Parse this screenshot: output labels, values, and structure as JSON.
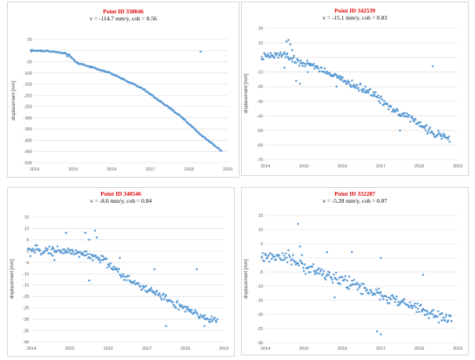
{
  "chart_data": [
    {
      "type": "scatter",
      "title": "Point ID 338046",
      "subtitle": "v = -114.7 mm/y, coh = 0.56",
      "ylabel": "displacement [mm]",
      "xlim": [
        2014,
        2019
      ],
      "ylim": [
        -500,
        50
      ],
      "yticks": [
        50,
        0,
        -50,
        -100,
        -150,
        -200,
        -250,
        -300,
        -350,
        -400,
        -450,
        -500
      ],
      "xticks": [
        2014,
        2015,
        2016,
        2017,
        2018,
        2019
      ],
      "marker_color": "#5b9bd5",
      "title_color": "#e00000",
      "trend": [
        [
          2013.9,
          0
        ],
        [
          2014.4,
          -3
        ],
        [
          2014.85,
          -15
        ],
        [
          2015.1,
          -55
        ],
        [
          2015.5,
          -75
        ],
        [
          2015.95,
          -100
        ],
        [
          2016.3,
          -128
        ],
        [
          2016.8,
          -170
        ],
        [
          2017.3,
          -232
        ],
        [
          2017.8,
          -295
        ],
        [
          2018.3,
          -375
        ],
        [
          2018.85,
          -448
        ]
      ],
      "points": 230,
      "noise": 3,
      "outliers": [
        [
          2014.9,
          -17
        ],
        [
          2014.85,
          -26
        ],
        [
          2018.3,
          -5
        ]
      ]
    },
    {
      "type": "scatter",
      "title": "Point ID 342539",
      "subtitle": "v = -15.1 mm/y, coh = 0.83",
      "ylabel": "displacement [mm]",
      "xlim": [
        2014,
        2019
      ],
      "ylim": [
        -70,
        20
      ],
      "yticks": [
        20,
        10,
        0,
        -10,
        -20,
        -30,
        -40,
        -50,
        -60,
        -70
      ],
      "xticks": [
        2014,
        2015,
        2016,
        2017,
        2018,
        2019
      ],
      "marker_color": "#5b9bd5",
      "title_color": "#e00000",
      "trend": [
        [
          2013.9,
          0
        ],
        [
          2014.5,
          2
        ],
        [
          2014.8,
          -3
        ],
        [
          2015.2,
          -5
        ],
        [
          2015.6,
          -10
        ],
        [
          2016.2,
          -18
        ],
        [
          2016.8,
          -25
        ],
        [
          2017.3,
          -35
        ],
        [
          2017.8,
          -42
        ],
        [
          2018.3,
          -51
        ],
        [
          2018.8,
          -56
        ]
      ],
      "points": 240,
      "noise": 2.5,
      "outliers": [
        [
          2014.55,
          11
        ],
        [
          2014.6,
          12
        ],
        [
          2014.65,
          9
        ],
        [
          2014.7,
          5
        ],
        [
          2014.5,
          -7
        ],
        [
          2014.8,
          -16
        ],
        [
          2014.9,
          -18
        ],
        [
          2015.1,
          -10
        ],
        [
          2015.85,
          -20
        ],
        [
          2018.35,
          -6
        ],
        [
          2017.5,
          -50
        ],
        [
          2016.6,
          -20
        ]
      ]
    },
    {
      "type": "scatter",
      "title": "Point ID 340546",
      "subtitle": "v = -8.6 mm/y, coh = 0.84",
      "ylabel": "displacement [mm]",
      "xlim": [
        2014,
        2019
      ],
      "ylim": [
        -40,
        15
      ],
      "yticks": [
        15,
        10,
        5,
        0,
        -5,
        -10,
        -15,
        -20,
        -25,
        -30,
        -35,
        -40
      ],
      "xticks": [
        2014,
        2015,
        2016,
        2017,
        2018,
        2019
      ],
      "marker_color": "#5b9bd5",
      "title_color": "#e00000",
      "trend": [
        [
          2013.9,
          0
        ],
        [
          2014.5,
          0.5
        ],
        [
          2015.0,
          0
        ],
        [
          2015.5,
          -2
        ],
        [
          2015.9,
          -4
        ],
        [
          2016.3,
          -10
        ],
        [
          2016.8,
          -15
        ],
        [
          2017.3,
          -19
        ],
        [
          2017.8,
          -24
        ],
        [
          2018.3,
          -28
        ],
        [
          2018.85,
          -31
        ]
      ],
      "points": 230,
      "noise": 1.8,
      "outliers": [
        [
          2014.55,
          -2
        ],
        [
          2014.6,
          -4
        ],
        [
          2014.9,
          8
        ],
        [
          2015.4,
          8
        ],
        [
          2015.5,
          5
        ],
        [
          2015.65,
          9
        ],
        [
          2015.7,
          6
        ],
        [
          2015.6,
          -4
        ],
        [
          2015.5,
          -13
        ],
        [
          2016.3,
          -3
        ],
        [
          2017.2,
          -8
        ],
        [
          2017.5,
          -33
        ],
        [
          2018.3,
          -8
        ],
        [
          2018.5,
          -33
        ]
      ]
    },
    {
      "type": "scatter",
      "title": "Point ID 332287",
      "subtitle": "v = -5.28 mm/y, coh = 0.87",
      "ylabel": "displacement [mm]",
      "xlim": [
        2014,
        2019
      ],
      "ylim": [
        -30,
        15
      ],
      "yticks": [
        15,
        10,
        5,
        0,
        -5,
        -10,
        -15,
        -20,
        -25,
        -30
      ],
      "xticks": [
        2014,
        2015,
        2016,
        2017,
        2018,
        2019
      ],
      "marker_color": "#5b9bd5",
      "title_color": "#e00000",
      "trend": [
        [
          2013.9,
          0
        ],
        [
          2014.6,
          0
        ],
        [
          2015.0,
          -3
        ],
        [
          2015.6,
          -6
        ],
        [
          2016.2,
          -9
        ],
        [
          2016.8,
          -12
        ],
        [
          2017.3,
          -15
        ],
        [
          2017.8,
          -17
        ],
        [
          2018.3,
          -20
        ],
        [
          2018.85,
          -22
        ]
      ],
      "points": 230,
      "noise": 2.0,
      "outliers": [
        [
          2014.85,
          12
        ],
        [
          2014.9,
          4
        ],
        [
          2014.95,
          1
        ],
        [
          2015.6,
          2
        ],
        [
          2016.25,
          2
        ],
        [
          2017.0,
          0
        ],
        [
          2016.9,
          -26
        ],
        [
          2017.0,
          -27
        ],
        [
          2018.1,
          -6
        ],
        [
          2015.8,
          -14
        ]
      ]
    }
  ]
}
